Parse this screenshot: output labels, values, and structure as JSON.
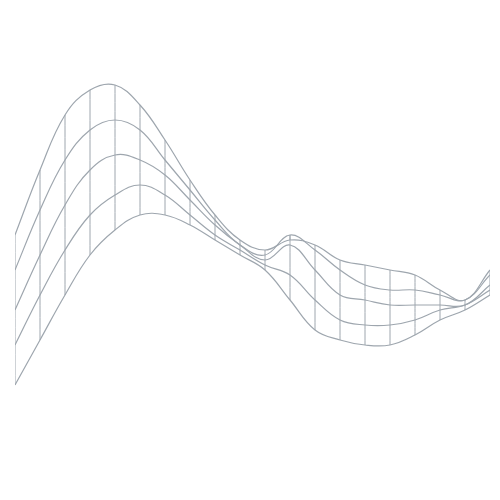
{
  "chart_data": {
    "type": "surface",
    "x": [
      0,
      1,
      2,
      3,
      4,
      5,
      6,
      7,
      8,
      9,
      10,
      11,
      12,
      13,
      14,
      15,
      16,
      17,
      18,
      19
    ],
    "y": [
      0,
      0.25,
      0.5,
      0.75,
      1
    ],
    "z": [
      [
        5.3,
        6.6,
        7.7,
        8.2,
        8.3,
        7.9,
        7.2,
        6.4,
        5.7,
        5.2,
        5.0,
        5.2,
        5.1,
        4.8,
        4.7,
        4.6,
        4.5,
        4.2,
        4.0,
        4.6
      ],
      [
        4.9,
        6.1,
        7.1,
        7.7,
        7.9,
        7.7,
        7.1,
        6.5,
        5.9,
        5.4,
        5.2,
        5.6,
        5.3,
        4.9,
        4.6,
        4.5,
        4.5,
        4.4,
        4.3,
        4.8
      ],
      [
        4.4,
        5.5,
        6.5,
        7.2,
        7.5,
        7.4,
        7.1,
        6.6,
        6.1,
        5.7,
        5.4,
        5.7,
        5.2,
        4.7,
        4.6,
        4.5,
        4.5,
        4.5,
        4.5,
        4.9
      ],
      [
        4.0,
        5.0,
        5.9,
        6.6,
        7.0,
        7.2,
        7.0,
        6.6,
        6.2,
        5.9,
        5.6,
        5.4,
        4.9,
        4.5,
        4.4,
        4.4,
        4.5,
        4.7,
        4.8,
        5.1
      ],
      [
        3.5,
        4.4,
        5.3,
        6.1,
        6.6,
        6.9,
        6.9,
        6.7,
        6.4,
        6.1,
        5.8,
        5.2,
        4.6,
        4.4,
        4.3,
        4.3,
        4.5,
        4.8,
        5.0,
        5.3
      ]
    ],
    "xlim": [
      0,
      19
    ],
    "ylim": [
      0,
      1
    ],
    "zlim": [
      2,
      9
    ],
    "grid": false,
    "tick_labels": false,
    "color": "#9ea6ae"
  }
}
